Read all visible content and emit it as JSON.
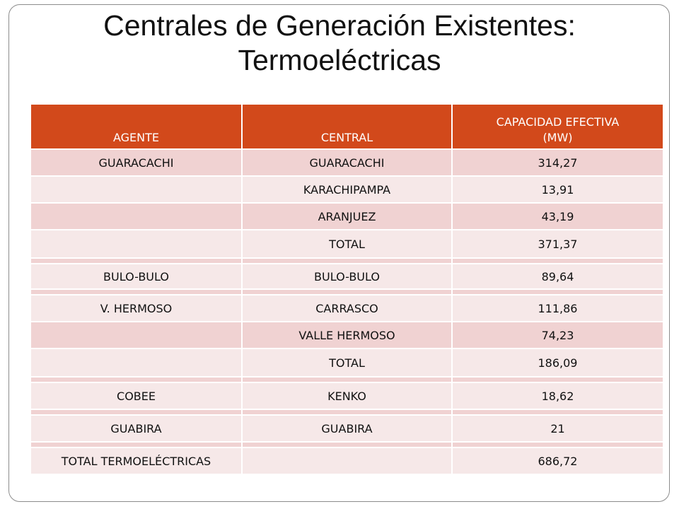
{
  "title_line1": "Centrales de Generación Existentes:",
  "title_line2": "Termoeléctricas",
  "table": {
    "headers": [
      "AGENTE",
      "CENTRAL",
      "CAPACIDAD EFECTIVA (MW)"
    ],
    "header_col3_line1": "CAPACIDAD EFECTIVA",
    "header_col3_line2": "(MW)",
    "rows": [
      {
        "agente": "GUARACACHI",
        "central": "GUARACACHI",
        "capacidad": "314,27"
      },
      {
        "agente": "",
        "central": "KARACHIPAMPA",
        "capacidad": "13,91"
      },
      {
        "agente": "",
        "central": "ARANJUEZ",
        "capacidad": "43,19"
      },
      {
        "agente": "",
        "central": "TOTAL",
        "capacidad": "371,37"
      },
      {
        "agente": "BULO-BULO",
        "central": "BULO-BULO",
        "capacidad": "89,64"
      },
      {
        "agente": "V. HERMOSO",
        "central": "CARRASCO",
        "capacidad": "111,86"
      },
      {
        "agente": "",
        "central": "VALLE HERMOSO",
        "capacidad": "74,23"
      },
      {
        "agente": "",
        "central": "TOTAL",
        "capacidad": "186,09"
      },
      {
        "agente": "COBEE",
        "central": "KENKO",
        "capacidad": "18,62"
      },
      {
        "agente": "GUABIRA",
        "central": "GUABIRA",
        "capacidad": "21"
      },
      {
        "agente": "TOTAL TERMOELÉCTRICAS",
        "central": "",
        "capacidad": "686,72"
      }
    ]
  },
  "colors": {
    "header_bg": "#d2491b",
    "row_dark": "#f0d2d2",
    "row_light": "#f6e8e8"
  }
}
